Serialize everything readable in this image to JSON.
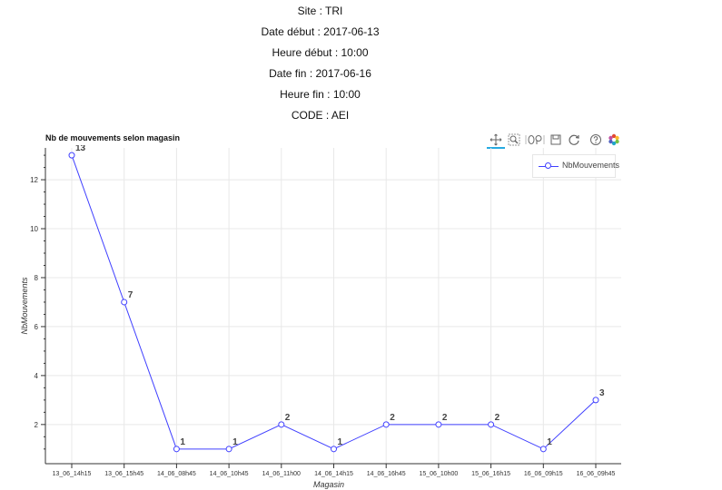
{
  "header": {
    "site": "Site : TRI",
    "date_debut": "Date début : 2017-06-13",
    "heure_debut": "Heure début : 10:00",
    "date_fin": "Date fin : 2017-06-16",
    "heure_fin": "Heure fin : 10:00",
    "code": "CODE : AEI"
  },
  "toolbar": {
    "tools": [
      "pan-icon",
      "box-zoom-icon",
      "wheel-zoom-icon",
      "save-icon",
      "reset-icon",
      "help-icon",
      "bokeh-logo-icon"
    ]
  },
  "chart_data": {
    "type": "line",
    "title": "Nb de mouvements selon magasin",
    "xlabel": "Magasin",
    "ylabel": "NbMouvements",
    "categories": [
      "13_06_14h15",
      "13_06_15h45",
      "14_06_08h45",
      "14_06_10h45",
      "14_06_11h00",
      "14_06_14h15",
      "14_06_16h45",
      "15_06_10h00",
      "15_06_16h15",
      "16_06_09h15",
      "16_06_09h45"
    ],
    "series": [
      {
        "name": "NbMouvements",
        "values": [
          13,
          7,
          1,
          1,
          2,
          1,
          2,
          2,
          2,
          1,
          3
        ],
        "color": "#4040ff"
      }
    ],
    "ylim": [
      0.4,
      13.3
    ],
    "yticks": [
      2,
      4,
      6,
      8,
      10,
      12
    ],
    "grid": true,
    "legend_position": "top-right",
    "data_labels": true
  }
}
